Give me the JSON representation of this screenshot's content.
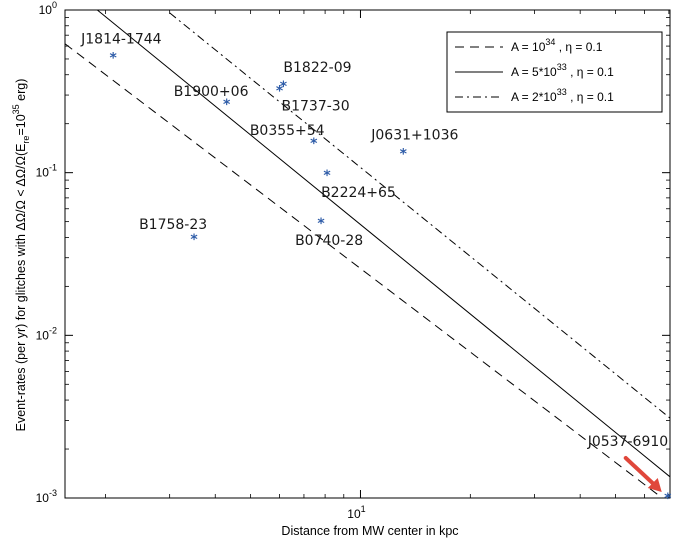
{
  "chart_data": {
    "type": "scatter",
    "xscale": "log",
    "yscale": "log",
    "xlim": [
      1.55,
      70.5
    ],
    "ylim": [
      0.001,
      1
    ],
    "x_ticks": [
      {
        "value": 10,
        "base": "10",
        "exp": "1"
      }
    ],
    "y_ticks": [
      {
        "value": 1,
        "base": "10",
        "exp": "0"
      },
      {
        "value": 0.1,
        "base": "10",
        "exp": "-1"
      },
      {
        "value": 0.01,
        "base": "10",
        "exp": "-2"
      },
      {
        "value": 0.001,
        "base": "10",
        "exp": "-3"
      }
    ],
    "xlabel": "Distance from MW center in kpc",
    "ylabel_parts": {
      "main": "Event-rates (per yr) for glitches with ΔΩ/Ω < ΔΩ/Ω(E",
      "sub": "re",
      "mid": "=10",
      "sup": "35",
      "end": " erg)"
    },
    "points": [
      {
        "label": "J1814-1744",
        "x": 2.1,
        "y": 0.51
      },
      {
        "label": "B1900+06",
        "x": 4.3,
        "y": 0.265
      },
      {
        "label": "B1822-09",
        "x": 6.15,
        "y": 0.34
      },
      {
        "label": "B1737-30",
        "x": 6.0,
        "y": 0.32
      },
      {
        "label": "B0355+54",
        "x": 7.45,
        "y": 0.152
      },
      {
        "label": "J0631+1036",
        "x": 13.1,
        "y": 0.131
      },
      {
        "label": "B2224+65",
        "x": 8.1,
        "y": 0.097
      },
      {
        "label": "B1758-23",
        "x": 3.5,
        "y": 0.039
      },
      {
        "label": "B0740-28",
        "x": 7.8,
        "y": 0.049
      },
      {
        "label": "J0537-6910",
        "x": 69.5,
        "y": 0.001
      }
    ],
    "series": [
      {
        "name_prefix": "A = 10",
        "name_sup": "34",
        "name_suffix": " , η = 0.1",
        "style": "dashed",
        "x": [
          1.55,
          70.5
        ],
        "y": [
          0.62,
          0.00092
        ]
      },
      {
        "name_prefix": "A = 5*10",
        "name_sup": "33",
        "name_suffix": " , η = 0.1",
        "style": "solid",
        "x": [
          1.9,
          70.5
        ],
        "y": [
          1.0,
          0.00135
        ]
      },
      {
        "name_prefix": "A = 2*10",
        "name_sup": "33",
        "name_suffix": " , η = 0.1",
        "style": "dashdot",
        "x": [
          3.0,
          70.5
        ],
        "y": [
          0.96,
          0.0031
        ]
      }
    ],
    "legend_position": "top-right",
    "grid": false,
    "marker_color": "#2e5ca8",
    "arrow_color": "#e0473b"
  }
}
